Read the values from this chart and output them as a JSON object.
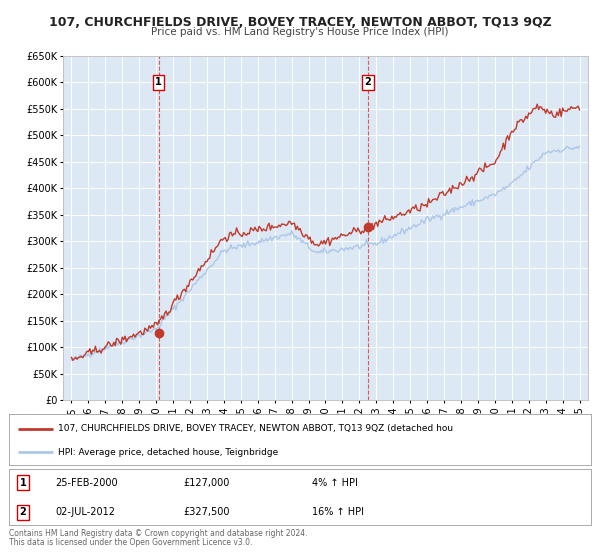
{
  "title": "107, CHURCHFIELDS DRIVE, BOVEY TRACEY, NEWTON ABBOT, TQ13 9QZ",
  "subtitle": "Price paid vs. HM Land Registry's House Price Index (HPI)",
  "background_color": "#ffffff",
  "plot_bg_color": "#dce9f5",
  "grid_color": "#ffffff",
  "xlim": [
    1994.5,
    2025.5
  ],
  "ylim": [
    0,
    650000
  ],
  "yticks": [
    0,
    50000,
    100000,
    150000,
    200000,
    250000,
    300000,
    350000,
    400000,
    450000,
    500000,
    550000,
    600000,
    650000
  ],
  "ytick_labels": [
    "£0",
    "£50K",
    "£100K",
    "£150K",
    "£200K",
    "£250K",
    "£300K",
    "£350K",
    "£400K",
    "£450K",
    "£500K",
    "£550K",
    "£600K",
    "£650K"
  ],
  "xticks": [
    1995,
    1996,
    1997,
    1998,
    1999,
    2000,
    2001,
    2002,
    2003,
    2004,
    2005,
    2006,
    2007,
    2008,
    2009,
    2010,
    2011,
    2012,
    2013,
    2014,
    2015,
    2016,
    2017,
    2018,
    2019,
    2020,
    2021,
    2022,
    2023,
    2024,
    2025
  ],
  "sale1_x": 2000.15,
  "sale1_y": 127000,
  "sale2_x": 2012.5,
  "sale2_y": 327500,
  "hpi_line_color": "#aec6e8",
  "price_line_color": "#c0392b",
  "vline_color": "#e05555",
  "legend_line1": "107, CHURCHFIELDS DRIVE, BOVEY TRACEY, NEWTON ABBOT, TQ13 9QZ (detached hou",
  "legend_line2": "HPI: Average price, detached house, Teignbridge",
  "sale1_date": "25-FEB-2000",
  "sale1_price": "£127,000",
  "sale1_hpi": "4% ↑ HPI",
  "sale2_date": "02-JUL-2012",
  "sale2_price": "£327,500",
  "sale2_hpi": "16% ↑ HPI",
  "footer1": "Contains HM Land Registry data © Crown copyright and database right 2024.",
  "footer2": "This data is licensed under the Open Government Licence v3.0."
}
